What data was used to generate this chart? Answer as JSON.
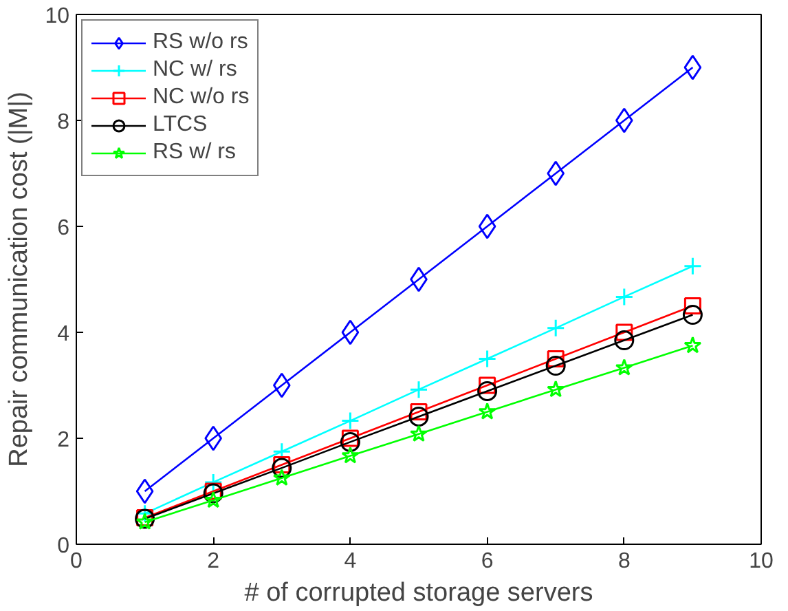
{
  "chart_data": {
    "type": "line",
    "xlabel": "# of corrupted storage servers",
    "ylabel": "Repair communication cost (|M|)",
    "x": [
      1,
      2,
      3,
      4,
      5,
      6,
      7,
      8,
      9
    ],
    "xlim": [
      0,
      10
    ],
    "ylim": [
      0,
      10
    ],
    "xticks": [
      0,
      2,
      4,
      6,
      8,
      10
    ],
    "yticks": [
      0,
      2,
      4,
      6,
      8,
      10
    ],
    "grid": false,
    "legend": "top left",
    "series": [
      {
        "name": "RS w/o rs",
        "color": "#0000ff",
        "marker": "diamond",
        "values": [
          1,
          2,
          3,
          4,
          5,
          6,
          7,
          8,
          9
        ]
      },
      {
        "name": "NC w/ rs",
        "color": "#00ffff",
        "marker": "cross",
        "values": [
          0.58,
          1.17,
          1.75,
          2.33,
          2.92,
          3.5,
          4.08,
          4.67,
          5.25
        ]
      },
      {
        "name": "NC w/o rs",
        "color": "#ff0000",
        "marker": "square",
        "values": [
          0.5,
          1,
          1.5,
          2,
          2.5,
          3,
          3.5,
          4,
          4.5
        ]
      },
      {
        "name": "LTCS",
        "color": "#000000",
        "marker": "circle",
        "values": [
          0.48,
          0.96,
          1.44,
          1.93,
          2.41,
          2.89,
          3.37,
          3.85,
          4.33
        ]
      },
      {
        "name": "RS w/ rs",
        "color": "#00ff00",
        "marker": "star",
        "values": [
          0.42,
          0.83,
          1.25,
          1.67,
          2.08,
          2.5,
          2.92,
          3.33,
          3.75
        ]
      }
    ]
  }
}
